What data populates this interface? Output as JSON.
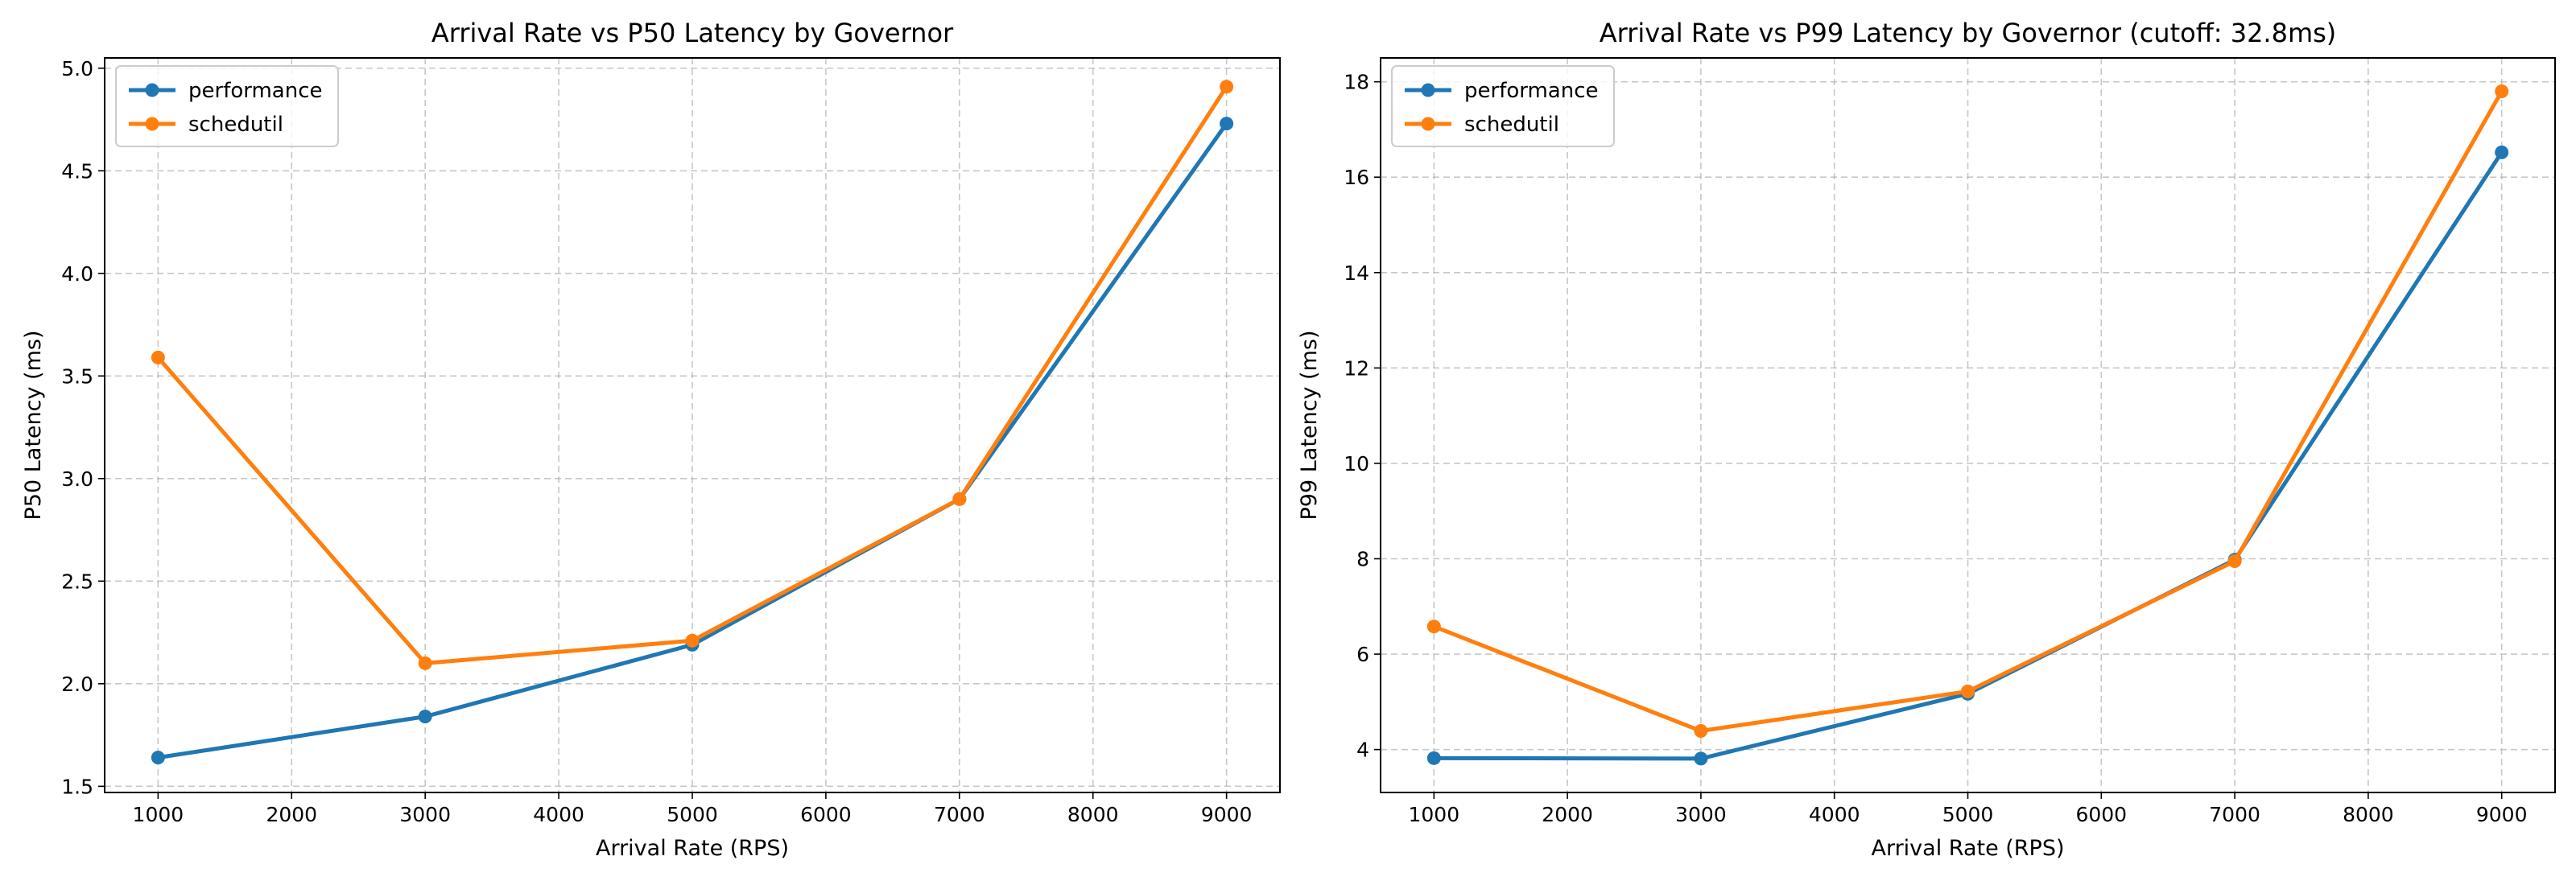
{
  "colors": {
    "performance": "#1f77b4",
    "schedutil": "#ff7f0e"
  },
  "chart_data": [
    {
      "type": "line",
      "title": "Arrival Rate vs P50 Latency by Governor",
      "xlabel": "Arrival Rate (RPS)",
      "ylabel": "P50 Latency (ms)",
      "xlim": [
        600,
        9400
      ],
      "ylim": [
        1.47,
        5.05
      ],
      "xticks": [
        1000,
        2000,
        3000,
        4000,
        5000,
        6000,
        7000,
        8000,
        9000
      ],
      "xtick_labels": [
        "1000",
        "2000",
        "3000",
        "4000",
        "5000",
        "6000",
        "7000",
        "8000",
        "9000"
      ],
      "yticks": [
        1.5,
        2.0,
        2.5,
        3.0,
        3.5,
        4.0,
        4.5,
        5.0
      ],
      "ytick_labels": [
        "1.5",
        "2.0",
        "2.5",
        "3.0",
        "3.5",
        "4.0",
        "4.5",
        "5.0"
      ],
      "grid": true,
      "legend_position": "top-left",
      "x": [
        1000,
        3000,
        5000,
        7000,
        9000
      ],
      "series": [
        {
          "name": "performance",
          "color": "#1f77b4",
          "values": [
            1.64,
            1.84,
            2.19,
            2.9,
            4.73
          ]
        },
        {
          "name": "schedutil",
          "color": "#ff7f0e",
          "values": [
            3.59,
            2.1,
            2.21,
            2.9,
            4.91
          ]
        }
      ]
    },
    {
      "type": "line",
      "title": "Arrival Rate vs P99 Latency by Governor (cutoff: 32.8ms)",
      "xlabel": "Arrival Rate (RPS)",
      "ylabel": "P99 Latency (ms)",
      "xlim": [
        600,
        9400
      ],
      "ylim": [
        3.1,
        18.5
      ],
      "xticks": [
        1000,
        2000,
        3000,
        4000,
        5000,
        6000,
        7000,
        8000,
        9000
      ],
      "xtick_labels": [
        "1000",
        "2000",
        "3000",
        "4000",
        "5000",
        "6000",
        "7000",
        "8000",
        "9000"
      ],
      "yticks": [
        4,
        6,
        8,
        10,
        12,
        14,
        16,
        18
      ],
      "ytick_labels": [
        "4",
        "6",
        "8",
        "10",
        "12",
        "14",
        "16",
        "18"
      ],
      "grid": true,
      "legend_position": "top-left",
      "x": [
        1000,
        3000,
        5000,
        7000,
        9000
      ],
      "series": [
        {
          "name": "performance",
          "color": "#1f77b4",
          "values": [
            3.82,
            3.81,
            5.17,
            7.98,
            16.52
          ]
        },
        {
          "name": "schedutil",
          "color": "#ff7f0e",
          "values": [
            6.58,
            4.39,
            5.22,
            7.95,
            17.8
          ]
        }
      ]
    }
  ]
}
